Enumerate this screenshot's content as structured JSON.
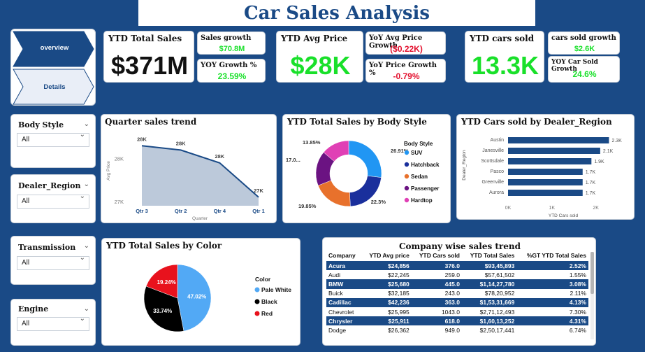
{
  "title": "Car Sales Analysis",
  "nav": {
    "overview": "overview",
    "details": "Details"
  },
  "kpis": {
    "ytd_sales_title": "YTD Total Sales",
    "ytd_sales_value": "$371M",
    "sales_growth_title": "Sales growth",
    "sales_growth_value": "$70.8M",
    "yoy_growth_title": "YOY Growth %",
    "yoy_growth_value": "23.59%",
    "avg_price_title": "YTD Avg Price",
    "avg_price_value": "$28K",
    "yoy_avg_price_title": "YoY Avg Price Growth",
    "yoy_avg_price_value": "($0.22K)",
    "yoy_price_growth_title": "YoY Price Growth %",
    "yoy_price_growth_value": "-0.79%",
    "cars_sold_title": "YTD cars sold",
    "cars_sold_value": "13.3K",
    "cars_sold_growth_title": "cars sold growth",
    "cars_sold_growth_value": "$2.6K",
    "yoy_car_sold_title": "YOY Car Sold Growth",
    "yoy_car_sold_value": "24.6%"
  },
  "slicers": {
    "body_style": {
      "title": "Body Style",
      "value": "All"
    },
    "dealer_region": {
      "title": "Dealer_Region",
      "value": "All"
    },
    "transmission": {
      "title": "Transmission",
      "value": "All"
    },
    "engine": {
      "title": "Engine",
      "value": "All"
    }
  },
  "colors": {
    "navy": "#1a4a86",
    "green": "#19e02a",
    "red": "#e3122f"
  },
  "chart_data": [
    {
      "id": "quarter",
      "type": "area",
      "title": "Quarter sales trend",
      "xlabel": "Quarter",
      "ylabel": "Avg Price",
      "categories": [
        "Qtr 3",
        "Qtr 2",
        "Qtr 4",
        "Qtr 1"
      ],
      "values": [
        28.3,
        28.2,
        27.9,
        27.1
      ],
      "data_labels": [
        "28K",
        "28K",
        "28K",
        "27K"
      ],
      "yticks": [
        "28K",
        "27K"
      ],
      "ylim": [
        26.9,
        28.5
      ]
    },
    {
      "id": "bodystyle",
      "type": "pie",
      "title": "YTD Total Sales by Body Style",
      "legend_title": "Body Style",
      "series": [
        {
          "name": "SUV",
          "value": 26.91,
          "label": "26.91%",
          "color": "#2196f3"
        },
        {
          "name": "Hatchback",
          "value": 22.3,
          "label": "22.3%",
          "color": "#1a2f9c"
        },
        {
          "name": "Sedan",
          "value": 19.85,
          "label": "19.85%",
          "color": "#e8712c"
        },
        {
          "name": "Passenger",
          "value": 17.09,
          "label": "17.0...",
          "color": "#6b1382"
        },
        {
          "name": "Hardtop",
          "value": 13.85,
          "label": "13.85%",
          "color": "#e040b5"
        }
      ]
    },
    {
      "id": "dealer",
      "type": "bar",
      "title": "YTD Cars sold by Dealer_Region",
      "xlabel": "YTD Cars sold",
      "ylabel": "Dealer_Region",
      "categories": [
        "Austin",
        "Janesville",
        "Scottsdale",
        "Pasco",
        "Greenville",
        "Aurora"
      ],
      "values": [
        2.3,
        2.1,
        1.9,
        1.7,
        1.7,
        1.7
      ],
      "data_labels": [
        "2.3K",
        "2.1K",
        "1.9K",
        "1.7K",
        "1.7K",
        "1.7K"
      ],
      "xticks": [
        "0K",
        "1K",
        "2K"
      ],
      "xlim": [
        0,
        2.5
      ]
    },
    {
      "id": "color",
      "type": "pie",
      "title": "YTD Total Sales by Color",
      "legend_title": "Color",
      "series": [
        {
          "name": "Pale White",
          "value": 47.02,
          "label": "47.02%",
          "color": "#52a9f5"
        },
        {
          "name": "Black",
          "value": 33.74,
          "label": "33.74%",
          "color": "#000000"
        },
        {
          "name": "Red",
          "value": 19.24,
          "label": "19.24%",
          "color": "#e8121d"
        }
      ]
    }
  ],
  "table": {
    "title": "Company wise sales trend",
    "columns": [
      "Company",
      "YTD Avg price",
      "YTD Cars sold",
      "YTD Total Sales",
      "%GT YTD Total Sales"
    ],
    "rows": [
      [
        "Acura",
        "$24,856",
        "376.0",
        "$93,45,893",
        "2.52%"
      ],
      [
        "Audi",
        "$22,245",
        "259.0",
        "$57,61,502",
        "1.55%"
      ],
      [
        "BMW",
        "$25,680",
        "445.0",
        "$1,14,27,780",
        "3.08%"
      ],
      [
        "Buick",
        "$32,185",
        "243.0",
        "$78,20,952",
        "2.11%"
      ],
      [
        "Cadillac",
        "$42,236",
        "363.0",
        "$1,53,31,669",
        "4.13%"
      ],
      [
        "Chevrolet",
        "$25,995",
        "1043.0",
        "$2,71,12,493",
        "7.30%"
      ],
      [
        "Chrysler",
        "$25,911",
        "618.0",
        "$1,60,13,252",
        "4.31%"
      ],
      [
        "Dodge",
        "$26,362",
        "949.0",
        "$2,50,17,441",
        "6.74%"
      ]
    ]
  }
}
